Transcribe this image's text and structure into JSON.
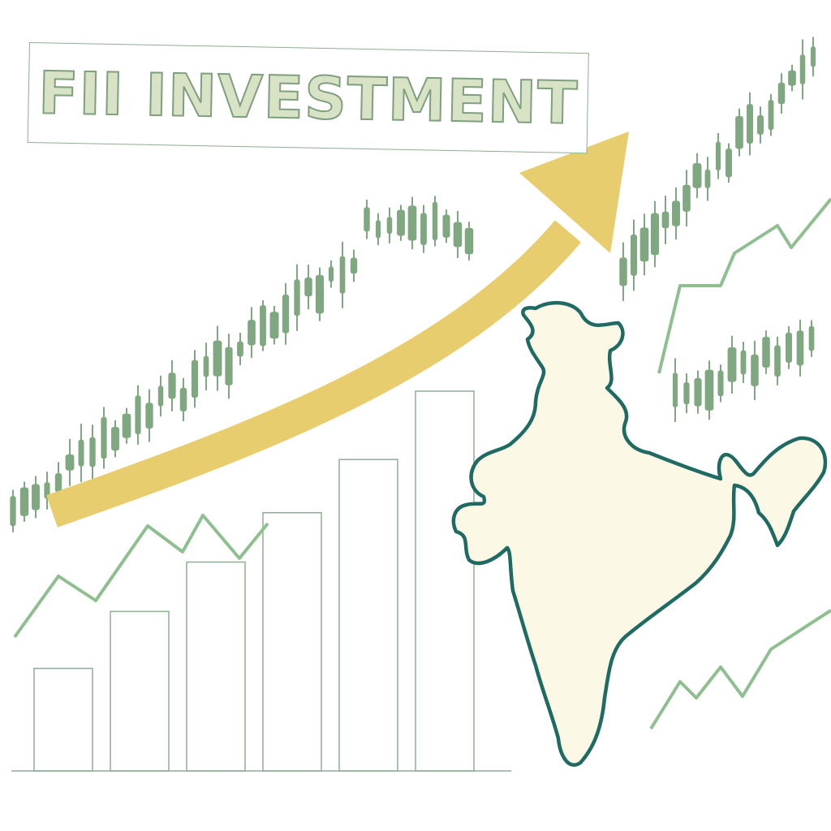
{
  "title": "FII INVESTMENT",
  "colors": {
    "candle": "#7fa880",
    "trend_line": "#8fbf8f",
    "arrow": "#e8cd6e",
    "map_fill": "#fbf9e6",
    "map_stroke": "#1f6b63",
    "bar_stroke": "#8fae93",
    "title_fill": "#d7e3c4"
  },
  "icons": [
    "rising-arrow-icon",
    "india-map-icon"
  ],
  "bars_relative_heights": [
    0.27,
    0.42,
    0.55,
    0.68,
    0.82,
    1.0
  ]
}
